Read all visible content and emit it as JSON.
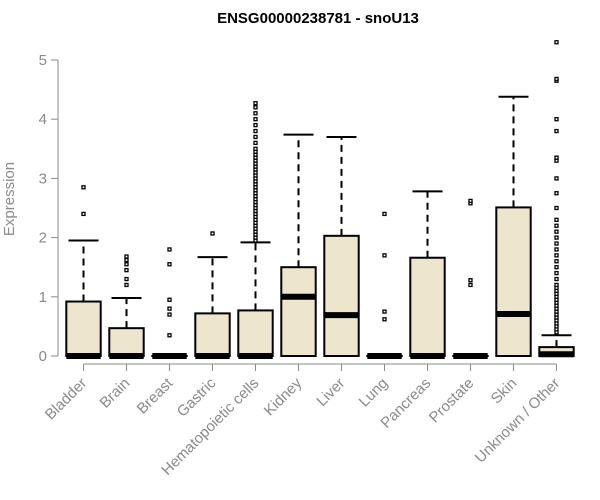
{
  "chart_data": {
    "type": "boxplot",
    "title": "ENSG00000238781 - snoU13",
    "xlabel": "",
    "ylabel": "Expression",
    "ylim": [
      0,
      5.35
    ],
    "yticks": [
      0,
      1,
      2,
      3,
      4,
      5
    ],
    "grid": false,
    "legend": "none",
    "box_fill": "#ede6cd",
    "categories": [
      "Bladder",
      "Brain",
      "Breast",
      "Gastric",
      "Hematopoietic cells",
      "Kidney",
      "Liver",
      "Lung",
      "Pancreas",
      "Prostate",
      "Skin",
      "Unknown / Other"
    ],
    "boxes": [
      {
        "q1": 0,
        "median": 0,
        "q3": 0.92,
        "whisker_low": 0,
        "whisker_high": 1.95,
        "outliers": [
          2.4,
          2.85
        ]
      },
      {
        "q1": 0,
        "median": 0,
        "q3": 0.47,
        "whisker_low": 0,
        "whisker_high": 0.98,
        "outliers": [
          1.2,
          1.3,
          1.45,
          1.55,
          1.62,
          1.68
        ]
      },
      {
        "q1": 0,
        "median": 0,
        "q3": 0,
        "whisker_low": 0,
        "whisker_high": 0,
        "outliers": [
          0.35,
          0.7,
          0.8,
          0.95,
          1.55,
          1.8
        ]
      },
      {
        "q1": 0,
        "median": 0,
        "q3": 0.72,
        "whisker_low": 0,
        "whisker_high": 1.67,
        "outliers": [
          2.07
        ]
      },
      {
        "q1": 0,
        "median": 0,
        "q3": 0.77,
        "whisker_low": 0,
        "whisker_high": 1.92,
        "outliers": [
          1.95,
          2.0,
          2.05,
          2.1,
          2.15,
          2.2,
          2.25,
          2.3,
          2.35,
          2.4,
          2.45,
          2.5,
          2.55,
          2.6,
          2.65,
          2.7,
          2.75,
          2.8,
          2.85,
          2.9,
          2.95,
          3.0,
          3.05,
          3.1,
          3.15,
          3.2,
          3.25,
          3.3,
          3.35,
          3.4,
          3.45,
          3.5,
          3.6,
          3.7,
          3.8,
          3.9,
          4.0,
          4.1,
          4.2,
          4.27
        ]
      },
      {
        "q1": 0,
        "median": 1.0,
        "q3": 1.5,
        "whisker_low": 0,
        "whisker_high": 3.74,
        "outliers": []
      },
      {
        "q1": 0,
        "median": 0.69,
        "q3": 2.03,
        "whisker_low": 0,
        "whisker_high": 3.7,
        "outliers": []
      },
      {
        "q1": 0,
        "median": 0,
        "q3": 0,
        "whisker_low": 0,
        "whisker_high": 0,
        "outliers": [
          0.62,
          0.75,
          1.7,
          2.4
        ]
      },
      {
        "q1": 0,
        "median": 0,
        "q3": 1.66,
        "whisker_low": 0,
        "whisker_high": 2.78,
        "outliers": []
      },
      {
        "q1": 0,
        "median": 0,
        "q3": 0,
        "whisker_low": 0,
        "whisker_high": 0,
        "outliers": [
          1.2,
          1.28,
          2.58,
          2.62
        ]
      },
      {
        "q1": 0,
        "median": 0.71,
        "q3": 2.51,
        "whisker_low": 0,
        "whisker_high": 4.38,
        "outliers": []
      },
      {
        "q1": 0,
        "median": 0.03,
        "q3": 0.15,
        "whisker_low": 0,
        "whisker_high": 0.35,
        "outliers": [
          0.4,
          0.45,
          0.5,
          0.55,
          0.6,
          0.65,
          0.7,
          0.75,
          0.8,
          0.85,
          0.9,
          0.95,
          1.0,
          1.05,
          1.1,
          1.15,
          1.2,
          1.3,
          1.4,
          1.5,
          1.6,
          1.7,
          1.8,
          1.9,
          2.0,
          2.1,
          2.2,
          2.3,
          2.5,
          2.75,
          3.0,
          3.3,
          3.35,
          3.8,
          4.0,
          4.65,
          4.68,
          5.3
        ]
      }
    ]
  }
}
